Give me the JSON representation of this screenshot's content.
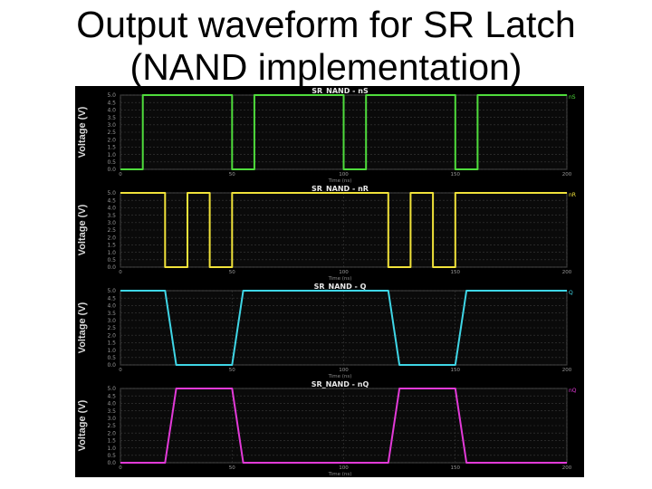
{
  "slide": {
    "title_line1": "Output waveform for SR Latch",
    "title_line2": "(NAND implementation)"
  },
  "chart_data": [
    {
      "type": "line",
      "title": "SR_NAND - nS",
      "ylabel": "Voltage (V)",
      "xlabel": "Time (ns)",
      "color": "#4fdc3c",
      "ylim": [
        0,
        5
      ],
      "xlim": [
        0,
        200
      ],
      "x_ticks": [
        "0",
        "50",
        "100",
        "150",
        "200"
      ],
      "y_ticks": [
        "5.0",
        "4.5",
        "4.0",
        "3.5",
        "3.0",
        "2.5",
        "2.0",
        "1.5",
        "1.0",
        "0.5",
        "0.0"
      ],
      "legend": "nS",
      "series": [
        {
          "x": [
            0,
            10,
            10,
            50,
            50,
            60,
            60,
            100,
            100,
            110,
            110,
            150,
            150,
            160,
            160,
            200
          ],
          "y": [
            0,
            0,
            5,
            5,
            0,
            0,
            5,
            5,
            0,
            0,
            5,
            5,
            0,
            0,
            5,
            5
          ]
        }
      ]
    },
    {
      "type": "line",
      "title": "SR_NAND - nR",
      "ylabel": "Voltage (V)",
      "xlabel": "Time (ns)",
      "color": "#f0e23a",
      "ylim": [
        0,
        5
      ],
      "xlim": [
        0,
        200
      ],
      "x_ticks": [
        "0",
        "50",
        "100",
        "150",
        "200"
      ],
      "y_ticks": [
        "5.0",
        "4.5",
        "4.0",
        "3.5",
        "3.0",
        "2.5",
        "2.0",
        "1.5",
        "1.0",
        "0.5",
        "0.0"
      ],
      "legend": "nR",
      "series": [
        {
          "x": [
            0,
            20,
            20,
            30,
            30,
            40,
            40,
            50,
            50,
            120,
            120,
            130,
            130,
            140,
            140,
            150,
            150,
            200
          ],
          "y": [
            5,
            5,
            0,
            0,
            5,
            5,
            0,
            0,
            5,
            5,
            0,
            0,
            5,
            5,
            0,
            0,
            5,
            5
          ]
        }
      ]
    },
    {
      "type": "line",
      "title": "SR_NAND - Q",
      "ylabel": "Voltage (V)",
      "xlabel": "Time (ns)",
      "color": "#3fd6e6",
      "ylim": [
        0,
        5
      ],
      "xlim": [
        0,
        200
      ],
      "x_ticks": [
        "0",
        "50",
        "100",
        "150",
        "200"
      ],
      "y_ticks": [
        "5.0",
        "4.5",
        "4.0",
        "3.5",
        "3.0",
        "2.5",
        "2.0",
        "1.5",
        "1.0",
        "0.5",
        "0.0"
      ],
      "legend": "Q",
      "series": [
        {
          "x": [
            0,
            20,
            25,
            50,
            55,
            120,
            125,
            150,
            155,
            200
          ],
          "y": [
            5,
            5,
            0,
            0,
            5,
            5,
            0,
            0,
            5,
            5
          ]
        }
      ]
    },
    {
      "type": "line",
      "title": "SR_NAND - nQ",
      "ylabel": "Voltage (V)",
      "xlabel": "Time (ns)",
      "color": "#e23ad8",
      "ylim": [
        0,
        5
      ],
      "xlim": [
        0,
        200
      ],
      "x_ticks": [
        "0",
        "50",
        "100",
        "150",
        "200"
      ],
      "y_ticks": [
        "5.0",
        "4.5",
        "4.0",
        "3.5",
        "3.0",
        "2.5",
        "2.0",
        "1.5",
        "1.0",
        "0.5",
        "0.0"
      ],
      "legend": "nQ",
      "series": [
        {
          "x": [
            0,
            20,
            25,
            50,
            55,
            120,
            125,
            150,
            155,
            200
          ],
          "y": [
            0,
            0,
            5,
            5,
            0,
            0,
            5,
            5,
            0,
            0
          ]
        }
      ]
    }
  ]
}
